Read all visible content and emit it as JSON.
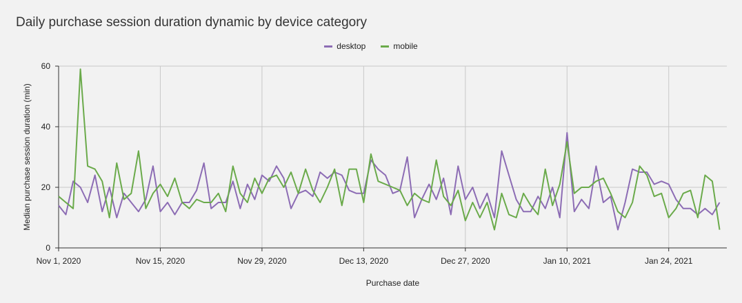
{
  "chart_data": {
    "type": "line",
    "title": "Daily purchase session duration dynamic by device category",
    "xlabel": "Purchase date",
    "ylabel": "Median purchase session duration (min)",
    "ylim": [
      0,
      60
    ],
    "yticks": [
      "0",
      "20",
      "40",
      "60"
    ],
    "x_start": "2020-11-01",
    "x_end": "2021-02-01",
    "xticks": [
      {
        "date": "2020-11-01",
        "label": "Nov 1, 2020"
      },
      {
        "date": "2020-11-15",
        "label": "Nov 15, 2020"
      },
      {
        "date": "2020-11-29",
        "label": "Nov 29, 2020"
      },
      {
        "date": "2020-12-13",
        "label": "Dec 13, 2020"
      },
      {
        "date": "2020-12-27",
        "label": "Dec 27, 2020"
      },
      {
        "date": "2021-01-10",
        "label": "Jan 10, 2021"
      },
      {
        "date": "2021-01-24",
        "label": "Jan 24, 2021"
      }
    ],
    "grid": true,
    "legend_position": "top-center",
    "series": [
      {
        "name": "desktop",
        "color": "#8c6cb4",
        "values": [
          14,
          11,
          22,
          20,
          15,
          24,
          12,
          20,
          10,
          18,
          15,
          12,
          16,
          27,
          12,
          15,
          11,
          15,
          15,
          19,
          28,
          13,
          15,
          15,
          22,
          13,
          21,
          16,
          24,
          22,
          27,
          23,
          13,
          18,
          19,
          17,
          25,
          23,
          25,
          24,
          19,
          18,
          18,
          29,
          26,
          24,
          18,
          19,
          30,
          10,
          16,
          21,
          16,
          23,
          11,
          27,
          16,
          20,
          13,
          18,
          10,
          32,
          24,
          16,
          12,
          12,
          17,
          13,
          20,
          10,
          38,
          12,
          16,
          13,
          27,
          15,
          17,
          6,
          15,
          26,
          25,
          25,
          21,
          22,
          21,
          16,
          13,
          13,
          11,
          13,
          11,
          15
        ]
      },
      {
        "name": "mobile",
        "color": "#6aaa4a",
        "values": [
          17,
          15,
          13,
          59,
          27,
          26,
          22,
          10,
          28,
          16,
          18,
          32,
          13,
          18,
          21,
          17,
          23,
          15,
          13,
          16,
          15,
          15,
          18,
          12,
          27,
          18,
          15,
          23,
          18,
          23,
          24,
          20,
          25,
          18,
          26,
          19,
          15,
          20,
          26,
          14,
          26,
          26,
          15,
          31,
          22,
          21,
          20,
          19,
          14,
          18,
          16,
          15,
          29,
          17,
          14,
          19,
          9,
          15,
          10,
          15,
          6,
          18,
          11,
          10,
          18,
          14,
          11,
          26,
          14,
          21,
          35,
          18,
          20,
          20,
          22,
          23,
          18,
          12,
          10,
          15,
          27,
          24,
          17,
          18,
          10,
          13,
          18,
          19,
          10,
          24,
          22,
          6
        ]
      }
    ]
  }
}
